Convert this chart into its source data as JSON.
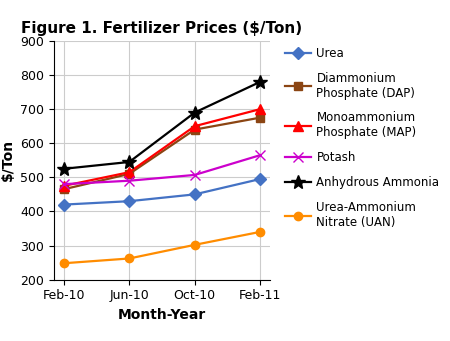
{
  "title": "Figure 1. Fertilizer Prices ($/Ton)",
  "xlabel": "Month-Year",
  "ylabel": "$/Ton",
  "x_labels": [
    "Feb-10",
    "Jun-10",
    "Oct-10",
    "Feb-11"
  ],
  "ylim": [
    200,
    900
  ],
  "yticks": [
    200,
    300,
    400,
    500,
    600,
    700,
    800,
    900
  ],
  "series": [
    {
      "name": "Urea",
      "values": [
        420,
        430,
        450,
        495
      ],
      "color": "#4472C4",
      "marker": "D",
      "markersize": 6
    },
    {
      "name": "Diammonium\nPhosphate (DAP)",
      "values": [
        465,
        510,
        640,
        675
      ],
      "color": "#8B4513",
      "marker": "s",
      "markersize": 6
    },
    {
      "name": "Monoammonium\nPhosphate (MAP)",
      "values": [
        475,
        515,
        650,
        700
      ],
      "color": "#FF0000",
      "marker": "^",
      "markersize": 7
    },
    {
      "name": "Potash",
      "values": [
        480,
        490,
        507,
        565
      ],
      "color": "#CC00CC",
      "marker": "x",
      "markersize": 7
    },
    {
      "name": "Anhydrous Ammonia",
      "values": [
        525,
        545,
        690,
        780
      ],
      "color": "#000000",
      "marker": "*",
      "markersize": 10
    },
    {
      "name": "Urea-Ammonium\nNitrate (UAN)",
      "values": [
        248,
        262,
        302,
        340
      ],
      "color": "#FF8C00",
      "marker": "o",
      "markersize": 6
    }
  ],
  "background_color": "#FFFFFF",
  "plot_bg_color": "#FFFFFF",
  "grid_color": "#CCCCCC",
  "title_fontsize": 11,
  "axis_label_fontsize": 10,
  "legend_fontsize": 8.5,
  "tick_fontsize": 9
}
